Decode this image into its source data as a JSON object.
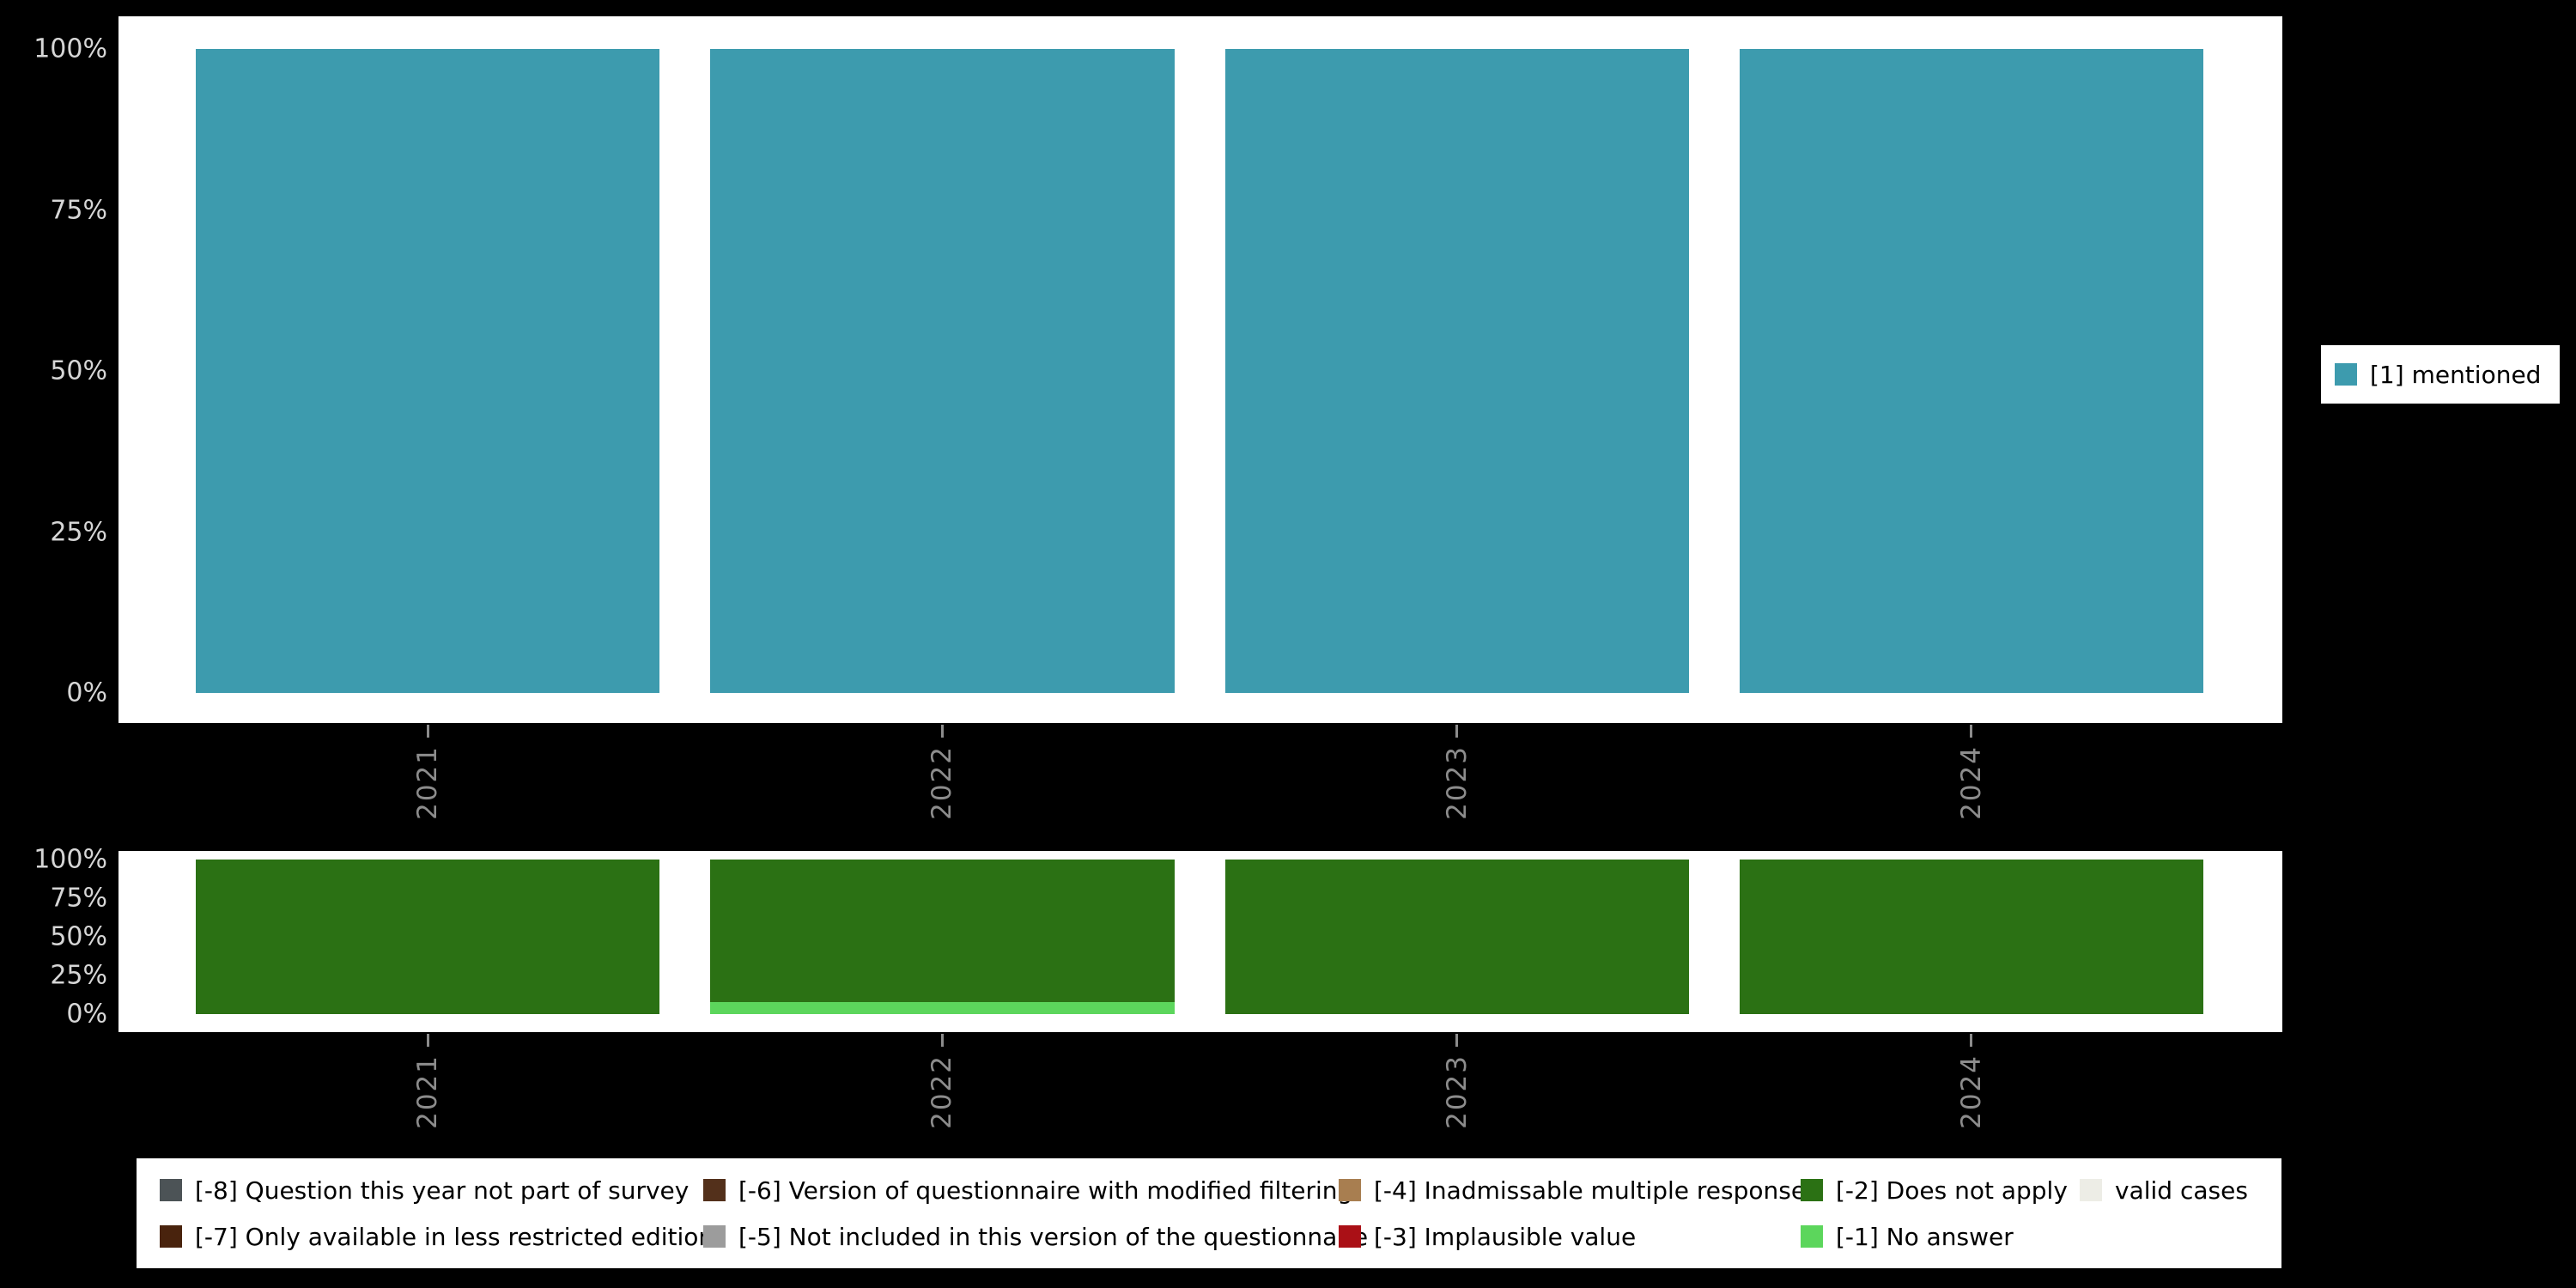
{
  "background_color": "#000000",
  "panel_color": "#FFFFFF",
  "valid_legend": {
    "swatch_color": "#3D9BAE",
    "label": "[1] mentioned"
  },
  "chart_data": [
    {
      "type": "bar",
      "stacked": true,
      "units": "percent",
      "title": "",
      "categories": [
        "2021",
        "2022",
        "2023",
        "2024"
      ],
      "series": [
        {
          "name": "[1] mentioned",
          "color": "#3D9BAE",
          "values": [
            100,
            100,
            100,
            100
          ]
        }
      ],
      "xlabel": "",
      "ylabel": "",
      "ylim": [
        0,
        100
      ],
      "y_ticks": [
        "0%",
        "25%",
        "50%",
        "75%",
        "100%"
      ],
      "grid": false,
      "legend_position": "right"
    },
    {
      "type": "bar",
      "stacked": true,
      "units": "percent",
      "title": "",
      "categories": [
        "2021",
        "2022",
        "2023",
        "2024"
      ],
      "series": [
        {
          "name": "[-2] Does not apply",
          "color": "#2B7114",
          "values": [
            100,
            92,
            100,
            100
          ]
        },
        {
          "name": "[-1] No answer",
          "color": "#5CD65C",
          "values": [
            0,
            8,
            0,
            0
          ]
        }
      ],
      "xlabel": "",
      "ylabel": "",
      "ylim": [
        0,
        100
      ],
      "y_ticks": [
        "0%",
        "25%",
        "50%",
        "75%",
        "100%"
      ],
      "grid": false,
      "legend_position": "bottom"
    }
  ],
  "missing_legend": {
    "rows": [
      [
        {
          "label": "[-8] Question this year not part of survey",
          "color": "#4C5356"
        },
        {
          "label": "[-6] Version of questionnaire with modified filtering",
          "color": "#53301B"
        },
        {
          "label": "[-4] Inadmissable multiple response",
          "color": "#A87E50"
        },
        {
          "label": "[-2] Does not apply",
          "color": "#2B7114"
        },
        {
          "label": "valid cases",
          "color": "#EDEDE6"
        }
      ],
      [
        {
          "label": "[-7] Only available in less restricted edition",
          "color": "#49230D"
        },
        {
          "label": "[-5] Not included in this version of the questionnaire",
          "color": "#9C9C9C"
        },
        {
          "label": "[-3] Implausible value",
          "color": "#AA1016"
        },
        {
          "label": "[-1] No answer",
          "color": "#5CD65C"
        }
      ]
    ]
  }
}
